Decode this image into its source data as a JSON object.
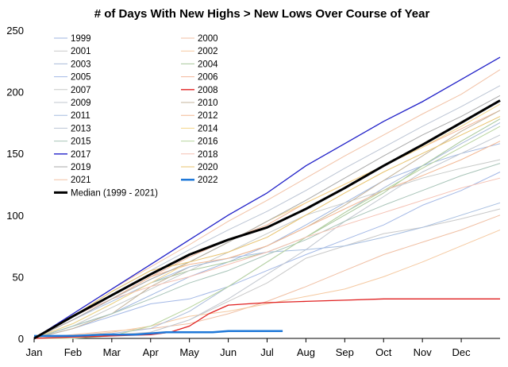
{
  "chart_data": {
    "type": "line",
    "title": "# of Days With New Highs > New Lows Over Course of Year",
    "xlabel": "",
    "ylabel": "",
    "xlim": [
      0,
      12
    ],
    "ylim": [
      0,
      250
    ],
    "y_ticks": [
      0,
      50,
      100,
      150,
      200,
      250
    ],
    "x_ticks": [
      {
        "label": "Jan",
        "value": 0
      },
      {
        "label": "Feb",
        "value": 1
      },
      {
        "label": "Mar",
        "value": 2
      },
      {
        "label": "Apr",
        "value": 3
      },
      {
        "label": "May",
        "value": 4
      },
      {
        "label": "Jun",
        "value": 5
      },
      {
        "label": "Jul",
        "value": 6
      },
      {
        "label": "Aug",
        "value": 7
      },
      {
        "label": "Sep",
        "value": 8
      },
      {
        "label": "Oct",
        "value": 9
      },
      {
        "label": "Nov",
        "value": 10
      },
      {
        "label": "Dec",
        "value": 11
      }
    ],
    "grid": false,
    "legend_position": "top-left",
    "series": [
      {
        "name": "1999",
        "color": "#9fb6e0",
        "width": 1,
        "x": [
          0,
          1,
          2,
          3,
          4,
          5,
          6,
          7,
          8,
          9,
          10,
          11,
          12
        ],
        "y": [
          0,
          10,
          20,
          35,
          50,
          62,
          75,
          92,
          110,
          128,
          140,
          150,
          158
        ]
      },
      {
        "name": "2000",
        "color": "#f0bfa3",
        "width": 1,
        "x": [
          0,
          1,
          2,
          3,
          4,
          5,
          6,
          7,
          8,
          9,
          10,
          11,
          12
        ],
        "y": [
          0,
          3,
          6,
          8,
          12,
          20,
          30,
          42,
          55,
          68,
          78,
          88,
          100
        ]
      },
      {
        "name": "2001",
        "color": "#c9c9c9",
        "width": 1,
        "x": [
          0,
          1,
          2,
          3,
          4,
          5,
          6,
          7,
          8,
          9,
          10,
          11,
          12
        ],
        "y": [
          0,
          2,
          3,
          5,
          15,
          30,
          45,
          65,
          75,
          85,
          90,
          97,
          105
        ]
      },
      {
        "name": "2002",
        "color": "#f5c9a0",
        "width": 1,
        "x": [
          0,
          1,
          2,
          3,
          4,
          5,
          6,
          7,
          8,
          9,
          10,
          11,
          12
        ],
        "y": [
          0,
          2,
          5,
          10,
          18,
          22,
          28,
          34,
          40,
          50,
          62,
          75,
          88
        ]
      },
      {
        "name": "2003",
        "color": "#a9bbd9",
        "width": 1,
        "x": [
          0,
          1,
          2,
          3,
          4,
          5,
          6,
          7,
          8,
          9,
          10,
          11,
          12
        ],
        "y": [
          0,
          2,
          4,
          8,
          22,
          42,
          62,
          82,
          102,
          122,
          140,
          158,
          175
        ]
      },
      {
        "name": "2004",
        "color": "#a8c89c",
        "width": 1,
        "x": [
          0,
          1,
          2,
          3,
          4,
          5,
          6,
          7,
          8,
          9,
          10,
          11,
          12
        ],
        "y": [
          0,
          12,
          28,
          45,
          55,
          62,
          70,
          82,
          100,
          118,
          140,
          160,
          178
        ]
      },
      {
        "name": "2005",
        "color": "#a3b8e6",
        "width": 1,
        "x": [
          0,
          1,
          2,
          3,
          4,
          5,
          6,
          7,
          8,
          9,
          10,
          11,
          12
        ],
        "y": [
          0,
          8,
          18,
          28,
          32,
          42,
          55,
          68,
          80,
          92,
          108,
          120,
          135
        ]
      },
      {
        "name": "2006",
        "color": "#f2b79a",
        "width": 1,
        "x": [
          0,
          1,
          2,
          3,
          4,
          5,
          6,
          7,
          8,
          9,
          10,
          11,
          12
        ],
        "y": [
          0,
          15,
          32,
          50,
          66,
          80,
          92,
          110,
          125,
          140,
          155,
          170,
          185
        ]
      },
      {
        "name": "2007",
        "color": "#c7cac8",
        "width": 1,
        "x": [
          0,
          1,
          2,
          3,
          4,
          5,
          6,
          7,
          8,
          9,
          10,
          11,
          12
        ],
        "y": [
          0,
          10,
          25,
          40,
          55,
          70,
          85,
          100,
          110,
          120,
          130,
          138,
          145
        ]
      },
      {
        "name": "2008",
        "color": "#e02020",
        "width": 1.3,
        "x": [
          0,
          1,
          2,
          3,
          3.5,
          4,
          4.5,
          5,
          5.5,
          6,
          7,
          8,
          9,
          10,
          11,
          12
        ],
        "y": [
          0,
          1,
          2,
          3,
          5,
          10,
          20,
          27,
          28,
          29,
          30,
          31,
          32,
          32,
          32,
          32
        ]
      },
      {
        "name": "2009",
        "color": "#c2c7cf",
        "width": 1,
        "x": [
          0,
          1,
          2,
          3,
          4,
          5,
          6,
          7,
          8,
          9,
          10,
          11,
          12
        ],
        "y": [
          0,
          1,
          2,
          5,
          15,
          32,
          52,
          72,
          95,
          115,
          135,
          150,
          165
        ]
      },
      {
        "name": "2010",
        "color": "#c4b49c",
        "width": 1,
        "x": [
          0,
          1,
          2,
          3,
          4,
          5,
          6,
          7,
          8,
          9,
          10,
          11,
          12
        ],
        "y": [
          0,
          8,
          20,
          42,
          58,
          65,
          75,
          90,
          108,
          128,
          148,
          168,
          185
        ]
      },
      {
        "name": "2011",
        "color": "#a6bee0",
        "width": 1,
        "x": [
          0,
          1,
          2,
          3,
          4,
          5,
          6,
          7,
          8,
          9,
          10,
          11,
          12
        ],
        "y": [
          0,
          15,
          30,
          45,
          58,
          65,
          70,
          72,
          75,
          82,
          90,
          100,
          110
        ]
      },
      {
        "name": "2012",
        "color": "#f3b894",
        "width": 1,
        "x": [
          0,
          1,
          2,
          3,
          4,
          5,
          6,
          7,
          8,
          9,
          10,
          11,
          12
        ],
        "y": [
          0,
          15,
          32,
          50,
          60,
          65,
          75,
          90,
          105,
          120,
          132,
          145,
          160
        ]
      },
      {
        "name": "2013",
        "color": "#bcc5d4",
        "width": 1,
        "x": [
          0,
          1,
          2,
          3,
          4,
          5,
          6,
          7,
          8,
          9,
          10,
          11,
          12
        ],
        "y": [
          0,
          18,
          38,
          55,
          72,
          88,
          103,
          120,
          138,
          155,
          172,
          188,
          205
        ]
      },
      {
        "name": "2014",
        "color": "#f4d58a",
        "width": 1,
        "x": [
          0,
          1,
          2,
          3,
          4,
          5,
          6,
          7,
          8,
          9,
          10,
          11,
          12
        ],
        "y": [
          0,
          12,
          28,
          45,
          62,
          78,
          95,
          110,
          125,
          140,
          155,
          172,
          190
        ]
      },
      {
        "name": "2015",
        "color": "#a8c4b8",
        "width": 1,
        "x": [
          0,
          1,
          2,
          3,
          4,
          5,
          6,
          7,
          8,
          9,
          10,
          11,
          12
        ],
        "y": [
          0,
          10,
          20,
          32,
          45,
          55,
          68,
          80,
          95,
          108,
          120,
          132,
          142
        ]
      },
      {
        "name": "2016",
        "color": "#b8d49e",
        "width": 1,
        "x": [
          0,
          1,
          2,
          3,
          4,
          5,
          6,
          7,
          8,
          9,
          10,
          11,
          12
        ],
        "y": [
          0,
          0,
          2,
          10,
          25,
          42,
          62,
          82,
          102,
          120,
          138,
          155,
          172
        ]
      },
      {
        "name": "2017",
        "color": "#2020c8",
        "width": 1.3,
        "x": [
          0,
          1,
          2,
          3,
          4,
          5,
          6,
          7,
          8,
          9,
          10,
          11,
          12
        ],
        "y": [
          0,
          20,
          40,
          60,
          80,
          100,
          118,
          140,
          158,
          176,
          192,
          210,
          228
        ]
      },
      {
        "name": "2018",
        "color": "#f5c0b2",
        "width": 1,
        "x": [
          0,
          1,
          2,
          3,
          4,
          5,
          6,
          7,
          8,
          9,
          10,
          11,
          12
        ],
        "y": [
          0,
          18,
          32,
          42,
          50,
          60,
          70,
          82,
          92,
          102,
          112,
          122,
          130
        ]
      },
      {
        "name": "2019",
        "color": "#a9a9a9",
        "width": 1,
        "x": [
          0,
          1,
          2,
          3,
          4,
          5,
          6,
          7,
          8,
          9,
          10,
          11,
          12
        ],
        "y": [
          0,
          15,
          32,
          48,
          62,
          78,
          95,
          112,
          130,
          148,
          165,
          180,
          197
        ]
      },
      {
        "name": "2020",
        "color": "#e8c36e",
        "width": 1,
        "x": [
          0,
          1,
          2,
          3,
          4,
          5,
          6,
          7,
          8,
          9,
          10,
          11,
          12
        ],
        "y": [
          0,
          18,
          38,
          55,
          62,
          70,
          82,
          100,
          118,
          135,
          150,
          165,
          180
        ]
      },
      {
        "name": "2021",
        "color": "#f2c2a6",
        "width": 1,
        "x": [
          0,
          1,
          2,
          3,
          4,
          5,
          6,
          7,
          8,
          9,
          10,
          11,
          12
        ],
        "y": [
          0,
          20,
          40,
          58,
          76,
          95,
          112,
          130,
          148,
          165,
          182,
          198,
          218
        ]
      },
      {
        "name": "2022",
        "color": "#1f78d8",
        "width": 2.5,
        "x": [
          0,
          1,
          1.8,
          2.6,
          3,
          3.4,
          4,
          4.6,
          5,
          5.5,
          6,
          6.4
        ],
        "y": [
          2,
          2,
          3,
          3,
          4,
          5,
          5,
          5,
          6,
          6,
          6,
          6
        ]
      },
      {
        "name": "Median (1999 -  2021)",
        "color": "#000000",
        "width": 3,
        "x": [
          0,
          1,
          2,
          3,
          4,
          5,
          6,
          7,
          8,
          9,
          10,
          11,
          12
        ],
        "y": [
          0,
          18,
          35,
          52,
          68,
          80,
          90,
          105,
          122,
          140,
          157,
          175,
          193
        ]
      }
    ]
  }
}
